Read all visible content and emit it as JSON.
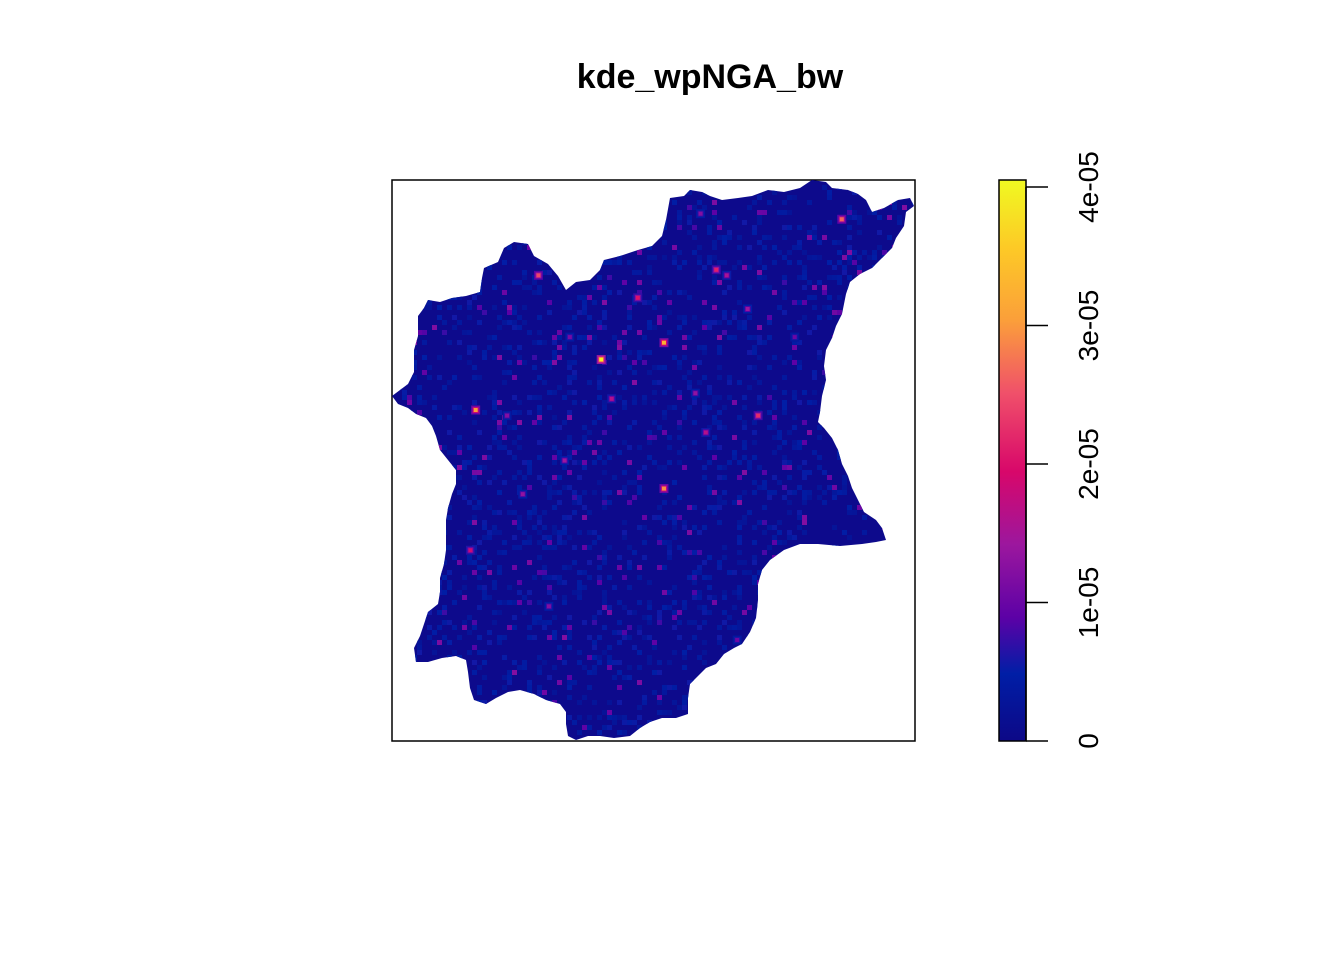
{
  "chart_data": {
    "type": "heatmap",
    "title": "kde_wpNGA_bw",
    "subtitle": "",
    "xlabel": "",
    "ylabel": "",
    "axes_shown": false,
    "legend": {
      "placement": "right",
      "orientation": "vertical",
      "range": [
        0,
        4e-05
      ],
      "ticks": [
        {
          "value": 0,
          "label": "0"
        },
        {
          "value": 1e-05,
          "label": "1e-05"
        },
        {
          "value": 2e-05,
          "label": "2e-05"
        },
        {
          "value": 3e-05,
          "label": "3e-05"
        },
        {
          "value": 4e-05,
          "label": "4e-05"
        }
      ],
      "colormap": [
        "#0d0887",
        "#001ea6",
        "#5c01a6",
        "#9c179e",
        "#cc4778",
        "#ed7953",
        "#fb9f3a",
        "#fdca26",
        "#f0f921"
      ]
    },
    "background_value": 0,
    "hotspots": [
      {
        "x": 0.4,
        "y": 0.68,
        "value": 3.9e-05
      },
      {
        "x": 0.52,
        "y": 0.71,
        "value": 3.2e-05
      },
      {
        "x": 0.52,
        "y": 0.45,
        "value": 2.9e-05
      },
      {
        "x": 0.16,
        "y": 0.59,
        "value": 3e-05
      },
      {
        "x": 0.28,
        "y": 0.83,
        "value": 2.4e-05
      },
      {
        "x": 0.47,
        "y": 0.79,
        "value": 2e-05
      },
      {
        "x": 0.62,
        "y": 0.84,
        "value": 2.1e-05
      },
      {
        "x": 0.7,
        "y": 0.58,
        "value": 2.2e-05
      },
      {
        "x": 0.86,
        "y": 0.93,
        "value": 2.6e-05
      },
      {
        "x": 0.15,
        "y": 0.34,
        "value": 1.8e-05
      },
      {
        "x": 0.33,
        "y": 0.5,
        "value": 1.4e-05
      },
      {
        "x": 0.6,
        "y": 0.55,
        "value": 1.6e-05
      },
      {
        "x": 0.64,
        "y": 0.83,
        "value": 1.5e-05
      },
      {
        "x": 0.25,
        "y": 0.44,
        "value": 1.3e-05
      },
      {
        "x": 0.42,
        "y": 0.61,
        "value": 1.6e-05
      },
      {
        "x": 0.68,
        "y": 0.77,
        "value": 1.4e-05
      },
      {
        "x": 0.22,
        "y": 0.58,
        "value": 1.2e-05
      },
      {
        "x": 0.58,
        "y": 0.62,
        "value": 1.3e-05
      },
      {
        "x": 0.3,
        "y": 0.24,
        "value": 1.2e-05
      },
      {
        "x": 0.66,
        "y": 0.18,
        "value": 1e-05
      },
      {
        "x": 0.34,
        "y": 0.72,
        "value": 1.1e-05
      },
      {
        "x": 0.44,
        "y": 0.88,
        "value": 1.1e-05
      },
      {
        "x": 0.77,
        "y": 0.72,
        "value": 1e-05
      },
      {
        "x": 0.59,
        "y": 0.94,
        "value": 1.2e-05
      }
    ]
  }
}
